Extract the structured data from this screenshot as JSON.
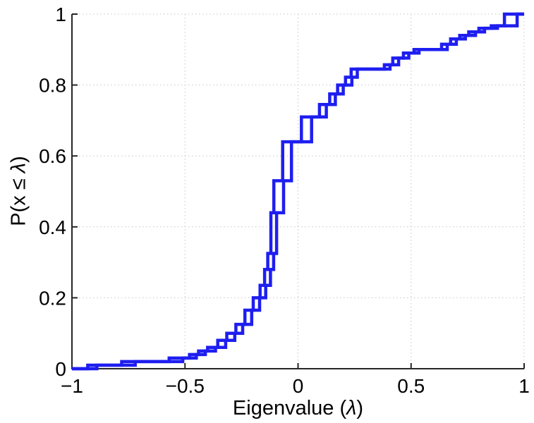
{
  "window": {
    "background": "#ffffff"
  },
  "labels": {
    "xlabel_prefix": "Eigenvalue (",
    "lambda": "λ",
    "xlabel_suffix": ")",
    "ylabel_prefix": "P(x ≤ ",
    "ylabel_suffix": ")"
  },
  "chart_data": {
    "type": "step",
    "subtype": "empirical-cdf-staircase",
    "title": "",
    "xlabel": "Eigenvalue (λ)",
    "ylabel": "P(x ≤ λ)",
    "xlim": [
      -1,
      1
    ],
    "ylim": [
      0,
      1
    ],
    "x_ticks": [
      {
        "v": -1,
        "label": "−1"
      },
      {
        "v": -0.5,
        "label": "−0.5"
      },
      {
        "v": 0,
        "label": "0"
      },
      {
        "v": 0.5,
        "label": "0.5"
      },
      {
        "v": 1,
        "label": "1"
      }
    ],
    "y_ticks": [
      {
        "v": 0,
        "label": "0"
      },
      {
        "v": 0.2,
        "label": "0.2"
      },
      {
        "v": 0.4,
        "label": "0.4"
      },
      {
        "v": 0.6,
        "label": "0.6"
      },
      {
        "v": 0.8,
        "label": "0.8"
      },
      {
        "v": 1,
        "label": "1"
      }
    ],
    "grid": {
      "style": "dotted",
      "color": "#c6c6c6"
    },
    "axis_color": "#262626",
    "line_color": "#1E1EF0",
    "line_width": 4.5,
    "legend": null,
    "series": [
      {
        "name": "ecdf-series-1",
        "start": [
          -1,
          0
        ],
        "end_x": 1.0,
        "steps": [
          [
            -0.93,
            0.01
          ],
          [
            -0.78,
            0.02
          ],
          [
            -0.57,
            0.03
          ],
          [
            -0.48,
            0.04
          ],
          [
            -0.44,
            0.05
          ],
          [
            -0.4,
            0.06
          ],
          [
            -0.355,
            0.08
          ],
          [
            -0.315,
            0.1
          ],
          [
            -0.275,
            0.125
          ],
          [
            -0.235,
            0.165
          ],
          [
            -0.198,
            0.2
          ],
          [
            -0.168,
            0.235
          ],
          [
            -0.148,
            0.28
          ],
          [
            -0.134,
            0.325
          ],
          [
            -0.12,
            0.44
          ],
          [
            -0.107,
            0.53
          ],
          [
            -0.068,
            0.64
          ],
          [
            0.015,
            0.71
          ],
          [
            0.095,
            0.745
          ],
          [
            0.14,
            0.775
          ],
          [
            0.175,
            0.8
          ],
          [
            0.21,
            0.822
          ],
          [
            0.235,
            0.845
          ],
          [
            0.382,
            0.857
          ],
          [
            0.419,
            0.876
          ],
          [
            0.466,
            0.89
          ],
          [
            0.513,
            0.9
          ],
          [
            0.635,
            0.915
          ],
          [
            0.675,
            0.93
          ],
          [
            0.715,
            0.94
          ],
          [
            0.755,
            0.95
          ],
          [
            0.8,
            0.96
          ],
          [
            0.855,
            0.967
          ],
          [
            0.913,
            1.0
          ]
        ]
      },
      {
        "name": "ecdf-series-2",
        "start": [
          -1,
          0
        ],
        "end_x": 1.0,
        "steps": [
          [
            -0.89,
            0.01
          ],
          [
            -0.72,
            0.02
          ],
          [
            -0.51,
            0.03
          ],
          [
            -0.45,
            0.04
          ],
          [
            -0.41,
            0.05
          ],
          [
            -0.365,
            0.06
          ],
          [
            -0.32,
            0.08
          ],
          [
            -0.28,
            0.1
          ],
          [
            -0.245,
            0.125
          ],
          [
            -0.205,
            0.165
          ],
          [
            -0.17,
            0.2
          ],
          [
            -0.143,
            0.235
          ],
          [
            -0.122,
            0.28
          ],
          [
            -0.108,
            0.325
          ],
          [
            -0.095,
            0.44
          ],
          [
            -0.064,
            0.53
          ],
          [
            -0.029,
            0.64
          ],
          [
            0.06,
            0.71
          ],
          [
            0.125,
            0.745
          ],
          [
            0.165,
            0.775
          ],
          [
            0.2,
            0.8
          ],
          [
            0.238,
            0.822
          ],
          [
            0.262,
            0.845
          ],
          [
            0.407,
            0.857
          ],
          [
            0.445,
            0.876
          ],
          [
            0.49,
            0.89
          ],
          [
            0.535,
            0.9
          ],
          [
            0.66,
            0.915
          ],
          [
            0.7,
            0.93
          ],
          [
            0.74,
            0.94
          ],
          [
            0.785,
            0.95
          ],
          [
            0.825,
            0.96
          ],
          [
            0.882,
            0.967
          ],
          [
            0.969,
            1.0
          ]
        ]
      }
    ]
  }
}
